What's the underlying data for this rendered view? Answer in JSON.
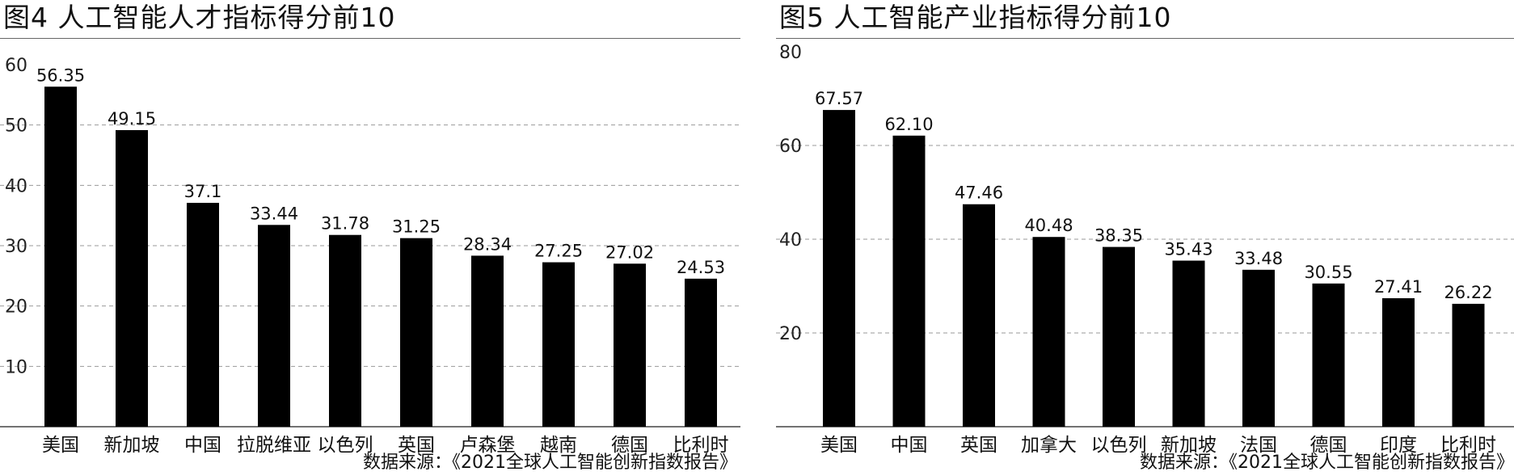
{
  "charts": [
    {
      "title": "图4  人工智能人才指标得分前10",
      "source": "数据来源：《2021全球人工智能创新指数报告》"
    },
    {
      "title": "图5  人工智能产业指标得分前10",
      "source": "数据来源：《2021全球人工智能创新指数报告》"
    }
  ],
  "colors": {
    "bar": "#000000",
    "grid": "#9a9a9a",
    "axis": "#444444"
  },
  "chart_data": [
    {
      "type": "bar",
      "title": "图4  人工智能人才指标得分前10",
      "xlabel": "",
      "ylabel": "",
      "ylim": [
        0,
        60
      ],
      "yticks": [
        10,
        20,
        30,
        40,
        50,
        60
      ],
      "grid": "dashed horizontal",
      "categories": [
        "美国",
        "新加坡",
        "中国",
        "拉脱维亚",
        "以色列",
        "英国",
        "卢森堡",
        "越南",
        "德国",
        "比利时"
      ],
      "values": [
        56.35,
        49.15,
        37.1,
        33.44,
        31.78,
        31.25,
        28.34,
        27.25,
        27.02,
        24.53
      ],
      "value_labels": [
        "56.35",
        "49.15",
        "37.1",
        "33.44",
        "31.78",
        "31.25",
        "28.34",
        "27.25",
        "27.02",
        "24.53"
      ]
    },
    {
      "type": "bar",
      "title": "图5  人工智能产业指标得分前10",
      "xlabel": "",
      "ylabel": "",
      "ylim": [
        0,
        80
      ],
      "yticks": [
        20,
        40,
        60,
        80
      ],
      "grid": "dashed horizontal",
      "categories": [
        "美国",
        "中国",
        "英国",
        "加拿大",
        "以色列",
        "新加坡",
        "法国",
        "德国",
        "印度",
        "比利时"
      ],
      "values": [
        67.57,
        62.1,
        47.46,
        40.48,
        38.35,
        35.43,
        33.48,
        30.55,
        27.41,
        26.22
      ],
      "value_labels": [
        "67.57",
        "62.10",
        "47.46",
        "40.48",
        "38.35",
        "35.43",
        "33.48",
        "30.55",
        "27.41",
        "26.22"
      ]
    }
  ]
}
